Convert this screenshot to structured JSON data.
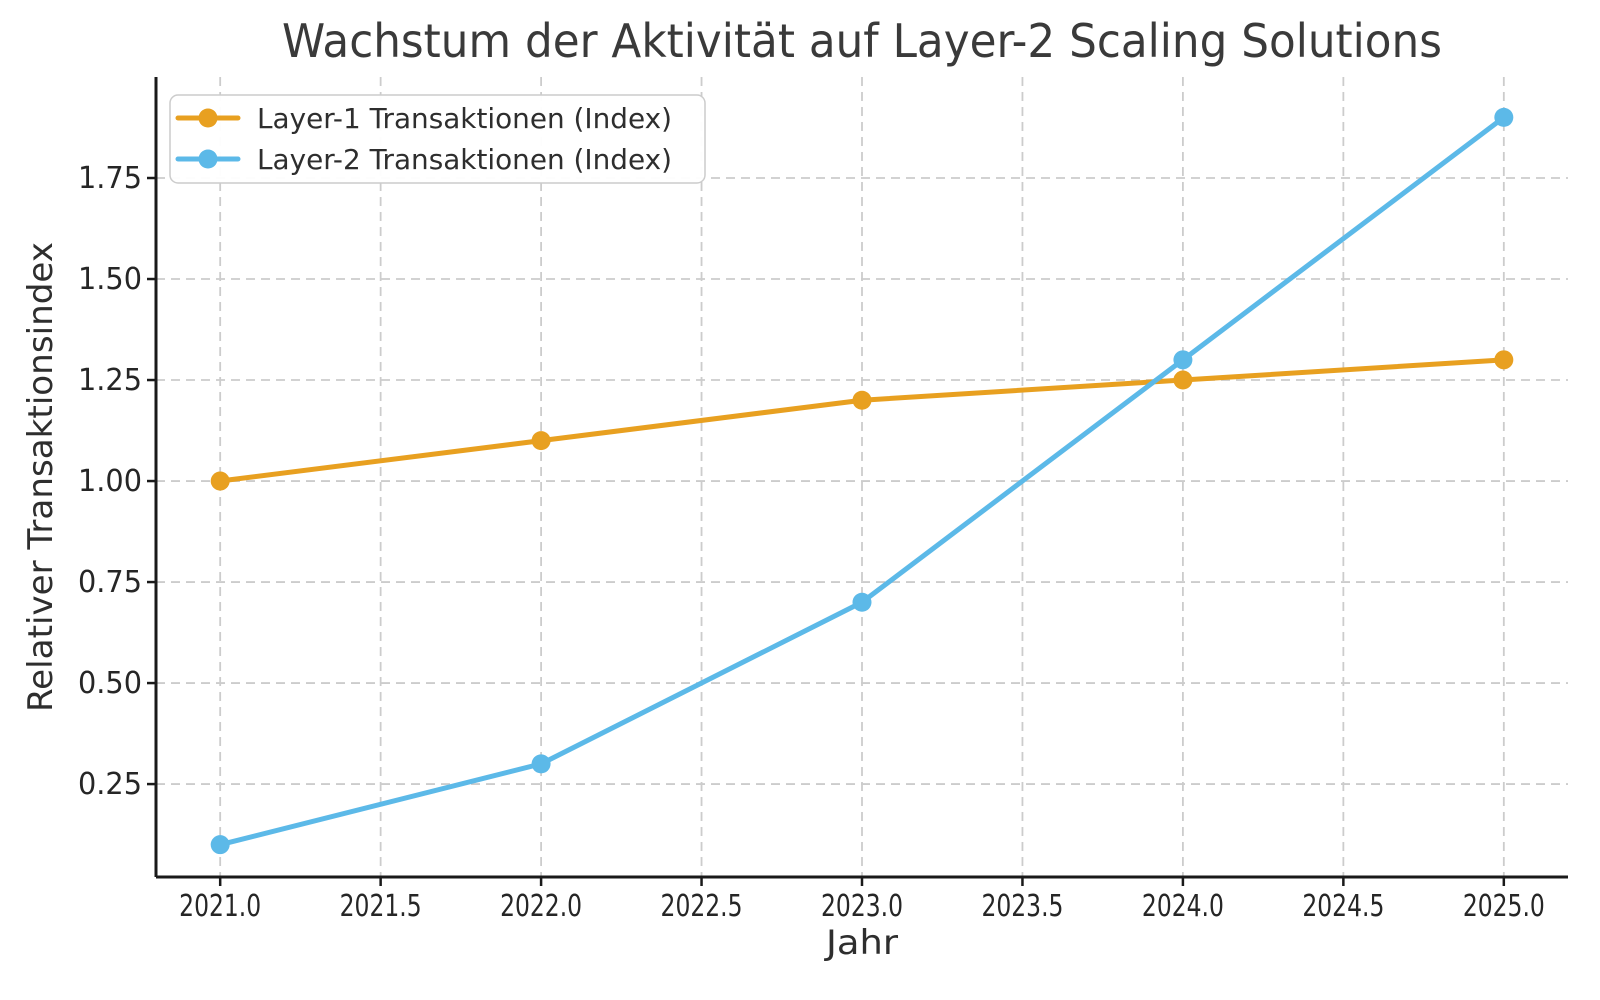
{
  "chart_data": {
    "type": "line",
    "title": "Wachstum der Aktivität auf Layer-2 Scaling Solutions",
    "xlabel": "Jahr",
    "ylabel": "Relativer Transaktionsindex",
    "x": [
      2021,
      2022,
      2023,
      2024,
      2025
    ],
    "series": [
      {
        "name": "Layer-1 Transaktionen (Index)",
        "color": "#E8A020",
        "marker": "circle",
        "values": [
          1.0,
          1.1,
          1.2,
          1.25,
          1.3
        ]
      },
      {
        "name": "Layer-2 Transaktionen (Index)",
        "color": "#5CB9E8",
        "marker": "circle",
        "values": [
          0.1,
          0.3,
          0.7,
          1.3,
          1.9
        ]
      }
    ],
    "xlim": [
      2020.8,
      2025.2
    ],
    "ylim": [
      0.02,
      2.0
    ],
    "xticks": {
      "values": [
        2021.0,
        2021.5,
        2022.0,
        2022.5,
        2023.0,
        2023.5,
        2024.0,
        2024.5,
        2025.0
      ],
      "labels": [
        "2021.0",
        "2021.5",
        "2022.0",
        "2022.5",
        "2023.0",
        "2023.5",
        "2024.0",
        "2024.5",
        "2025.0"
      ]
    },
    "yticks": {
      "values": [
        0.25,
        0.5,
        0.75,
        1.0,
        1.25,
        1.5,
        1.75
      ],
      "labels": [
        "0.25",
        "0.50",
        "0.75",
        "1.00",
        "1.25",
        "1.50",
        "1.75"
      ]
    },
    "grid": true,
    "grid_style": "dashed",
    "legend_position": "upper left",
    "colors": {
      "grid": "#CCCCCC",
      "axis": "#1A1A1A",
      "text": "#262626",
      "background": "#FFFFFF"
    }
  }
}
